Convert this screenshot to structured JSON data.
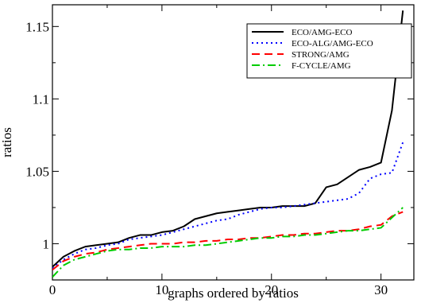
{
  "chart_data": {
    "type": "line",
    "title": "",
    "xlabel": "graphs ordered by ratios",
    "ylabel": "ratios",
    "xlim": [
      0,
      33
    ],
    "ylim": [
      0.975,
      1.165
    ],
    "x_ticks": [
      0,
      10,
      20,
      30
    ],
    "x_tick_labels": [
      "0",
      "10",
      "20",
      "30"
    ],
    "y_ticks": [
      1.0,
      1.05,
      1.1,
      1.15
    ],
    "y_tick_labels": [
      "1",
      "1.05",
      "1.1",
      "1.15"
    ],
    "grid": false,
    "legend_position": "top-right",
    "series": [
      {
        "name": "ECO/AMG-ECO",
        "color": "#000000",
        "dash": "solid",
        "x": [
          0,
          1,
          2,
          3,
          4,
          5,
          6,
          7,
          8,
          9,
          10,
          11,
          12,
          13,
          14,
          15,
          16,
          17,
          18,
          19,
          20,
          21,
          22,
          23,
          24,
          25,
          26,
          27,
          28,
          29,
          30,
          31,
          32
        ],
        "values": [
          0.984,
          0.991,
          0.995,
          0.998,
          0.999,
          1.0,
          1.001,
          1.004,
          1.006,
          1.006,
          1.008,
          1.009,
          1.012,
          1.017,
          1.019,
          1.021,
          1.022,
          1.023,
          1.024,
          1.025,
          1.025,
          1.026,
          1.026,
          1.026,
          1.028,
          1.039,
          1.041,
          1.046,
          1.051,
          1.053,
          1.056,
          1.092,
          1.161
        ]
      },
      {
        "name": "ECO-ALG/AMG-ECO",
        "color": "#0000ff",
        "dash": "dotted",
        "x": [
          0,
          1,
          2,
          3,
          4,
          5,
          6,
          7,
          8,
          9,
          10,
          11,
          12,
          13,
          14,
          15,
          16,
          17,
          18,
          19,
          20,
          21,
          22,
          23,
          24,
          25,
          26,
          27,
          28,
          29,
          30,
          31,
          32
        ],
        "values": [
          0.983,
          0.989,
          0.993,
          0.996,
          0.997,
          0.999,
          1.0,
          1.003,
          1.004,
          1.005,
          1.006,
          1.008,
          1.01,
          1.012,
          1.014,
          1.016,
          1.017,
          1.02,
          1.022,
          1.024,
          1.025,
          1.025,
          1.026,
          1.027,
          1.028,
          1.029,
          1.03,
          1.031,
          1.035,
          1.045,
          1.048,
          1.049,
          1.07
        ]
      },
      {
        "name": "STRONG/AMG",
        "color": "#ff0000",
        "dash": "dashed",
        "x": [
          0,
          1,
          2,
          3,
          4,
          5,
          6,
          7,
          8,
          9,
          10,
          11,
          12,
          13,
          14,
          15,
          16,
          17,
          18,
          19,
          20,
          21,
          22,
          23,
          24,
          25,
          26,
          27,
          28,
          29,
          30,
          31,
          32
        ],
        "values": [
          0.982,
          0.988,
          0.991,
          0.993,
          0.994,
          0.996,
          0.997,
          0.998,
          0.999,
          1.0,
          1.0,
          1.0,
          1.001,
          1.001,
          1.002,
          1.002,
          1.003,
          1.003,
          1.004,
          1.004,
          1.005,
          1.006,
          1.006,
          1.007,
          1.007,
          1.008,
          1.009,
          1.009,
          1.01,
          1.012,
          1.013,
          1.019,
          1.022
        ]
      },
      {
        "name": "F-CYCLE/AMG",
        "color": "#00cc00",
        "dash": "dashdot",
        "x": [
          0,
          1,
          2,
          3,
          4,
          5,
          6,
          7,
          8,
          9,
          10,
          11,
          12,
          13,
          14,
          15,
          16,
          17,
          18,
          19,
          20,
          21,
          22,
          23,
          24,
          25,
          26,
          27,
          28,
          29,
          30,
          31,
          32
        ],
        "values": [
          0.977,
          0.985,
          0.989,
          0.991,
          0.993,
          0.995,
          0.996,
          0.996,
          0.997,
          0.997,
          0.998,
          0.998,
          0.998,
          0.999,
          0.999,
          1.0,
          1.001,
          1.002,
          1.003,
          1.004,
          1.004,
          1.005,
          1.005,
          1.006,
          1.006,
          1.007,
          1.008,
          1.009,
          1.009,
          1.01,
          1.011,
          1.018,
          1.025
        ]
      }
    ]
  }
}
